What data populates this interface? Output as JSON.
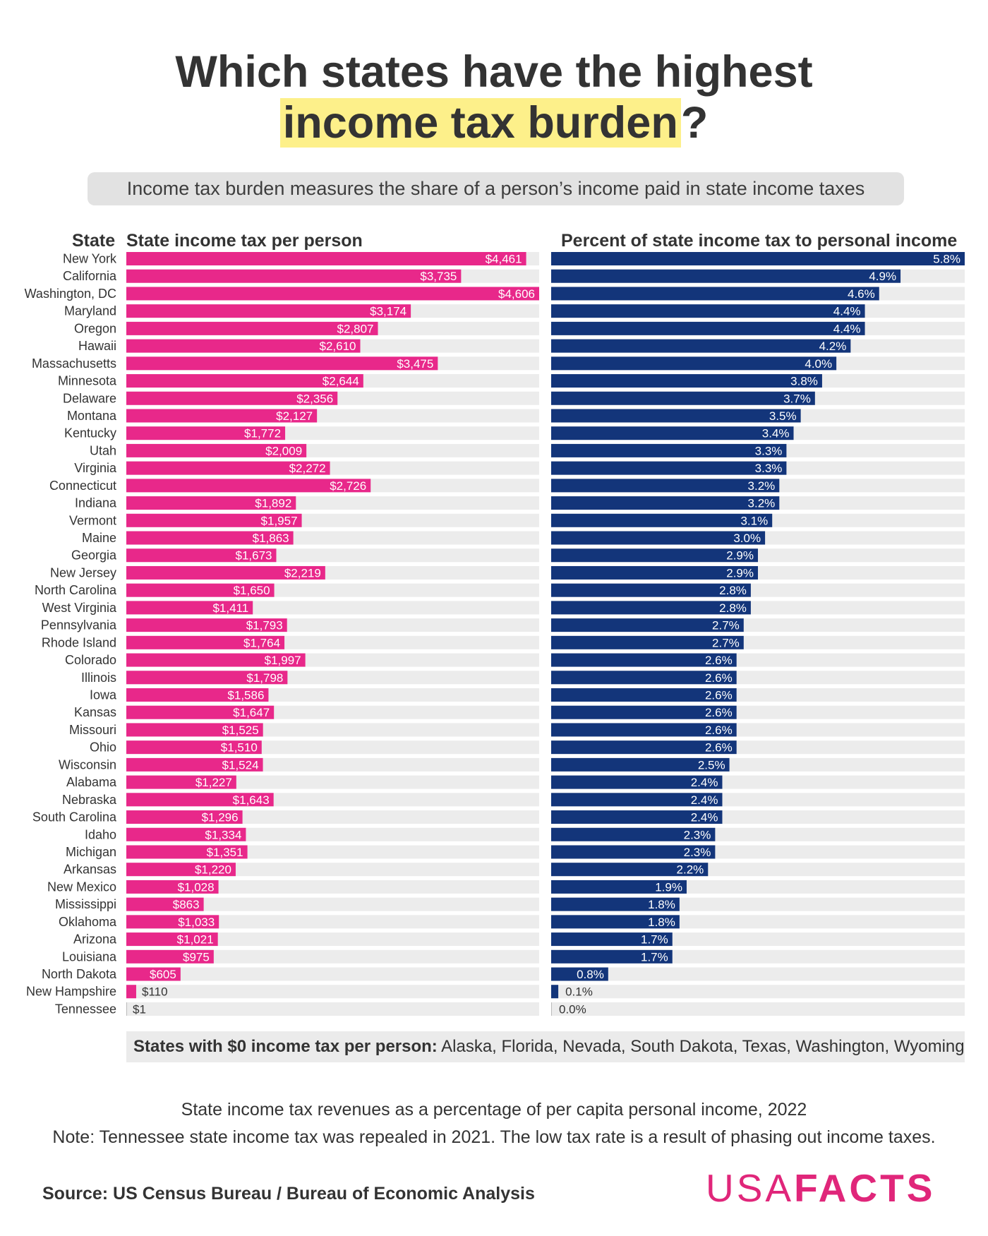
{
  "header": {
    "title_line1": "Which states have the highest",
    "title_line2_highlight": "income tax burden",
    "title_line2_end": "?",
    "subtitle": "Income tax burden measures the share of a person’s income paid in state income taxes"
  },
  "colors": {
    "per_person_bar": "#e8288a",
    "percent_bar": "#13357a",
    "track": "#ececec",
    "highlight": "#fdf08a",
    "brand": "#e0267a"
  },
  "chart_data": {
    "type": "bar",
    "orientation": "horizontal",
    "title": "Which states have the highest income tax burden?",
    "category_header": "State",
    "categories": [
      "New York",
      "California",
      "Washington, DC",
      "Maryland",
      "Oregon",
      "Hawaii",
      "Massachusetts",
      "Minnesota",
      "Delaware",
      "Montana",
      "Kentucky",
      "Utah",
      "Virginia",
      "Connecticut",
      "Indiana",
      "Vermont",
      "Maine",
      "Georgia",
      "New Jersey",
      "North Carolina",
      "West Virginia",
      "Pennsylvania",
      "Rhode Island",
      "Colorado",
      "Illinois",
      "Iowa",
      "Kansas",
      "Missouri",
      "Ohio",
      "Wisconsin",
      "Alabama",
      "Nebraska",
      "South Carolina",
      "Idaho",
      "Michigan",
      "Arkansas",
      "New Mexico",
      "Mississippi",
      "Oklahoma",
      "Arizona",
      "Louisiana",
      "North Dakota",
      "New Hampshire",
      "Tennessee"
    ],
    "series": [
      {
        "name": "State income tax per person",
        "unit": "$",
        "xlim": [
          0,
          4606
        ],
        "values": [
          4461,
          3735,
          4606,
          3174,
          2807,
          2610,
          3475,
          2644,
          2356,
          2127,
          1772,
          2009,
          2272,
          2726,
          1892,
          1957,
          1863,
          1673,
          2219,
          1650,
          1411,
          1793,
          1764,
          1997,
          1798,
          1586,
          1647,
          1525,
          1510,
          1524,
          1227,
          1643,
          1296,
          1334,
          1351,
          1220,
          1028,
          863,
          1033,
          1021,
          975,
          605,
          110,
          1
        ],
        "labels": [
          "$4,461",
          "$3,735",
          "$4,606",
          "$3,174",
          "$2,807",
          "$2,610",
          "$3,475",
          "$2,644",
          "$2,356",
          "$2,127",
          "$1,772",
          "$2,009",
          "$2,272",
          "$2,726",
          "$1,892",
          "$1,957",
          "$1,863",
          "$1,673",
          "$2,219",
          "$1,650",
          "$1,411",
          "$1,793",
          "$1,764",
          "$1,997",
          "$1,798",
          "$1,586",
          "$1,647",
          "$1,525",
          "$1,510",
          "$1,524",
          "$1,227",
          "$1,643",
          "$1,296",
          "$1,334",
          "$1,351",
          "$1,220",
          "$1,028",
          "$863",
          "$1,033",
          "$1,021",
          "$975",
          "$605",
          "$110",
          "$1"
        ]
      },
      {
        "name": "Percent of state income tax to personal income",
        "unit": "%",
        "xlim": [
          0,
          5.8
        ],
        "values": [
          5.8,
          4.9,
          4.6,
          4.4,
          4.4,
          4.2,
          4.0,
          3.8,
          3.7,
          3.5,
          3.4,
          3.3,
          3.3,
          3.2,
          3.2,
          3.1,
          3.0,
          2.9,
          2.9,
          2.8,
          2.8,
          2.7,
          2.7,
          2.6,
          2.6,
          2.6,
          2.6,
          2.6,
          2.6,
          2.5,
          2.4,
          2.4,
          2.4,
          2.3,
          2.3,
          2.2,
          1.9,
          1.8,
          1.8,
          1.7,
          1.7,
          0.8,
          0.1,
          0.0
        ],
        "labels": [
          "5.8%",
          "4.9%",
          "4.6%",
          "4.4%",
          "4.4%",
          "4.2%",
          "4.0%",
          "3.8%",
          "3.7%",
          "3.5%",
          "3.4%",
          "3.3%",
          "3.3%",
          "3.2%",
          "3.2%",
          "3.1%",
          "3.0%",
          "2.9%",
          "2.9%",
          "2.8%",
          "2.8%",
          "2.7%",
          "2.7%",
          "2.6%",
          "2.6%",
          "2.6%",
          "2.6%",
          "2.6%",
          "2.6%",
          "2.5%",
          "2.4%",
          "2.4%",
          "2.4%",
          "2.3%",
          "2.3%",
          "2.2%",
          "1.9%",
          "1.8%",
          "1.8%",
          "1.7%",
          "1.7%",
          "0.8%",
          "0.1%",
          "0.0%"
        ]
      }
    ],
    "grid": false,
    "legend": "none"
  },
  "zero_tax": {
    "label": "States with $0 income tax per person:",
    "states": " Alaska, Florida, Nevada, South Dakota, Texas, Washington, Wyoming"
  },
  "footer": {
    "note1": "State income tax revenues as a percentage of per capita personal income, 2022",
    "note2": "Note: Tennessee state income tax was repealed in 2021. The low tax rate is a result of phasing out income taxes.",
    "source": "Source: US Census Bureau / Bureau of Economic Analysis",
    "logo_usa": "USA",
    "logo_facts": "FACTS"
  }
}
